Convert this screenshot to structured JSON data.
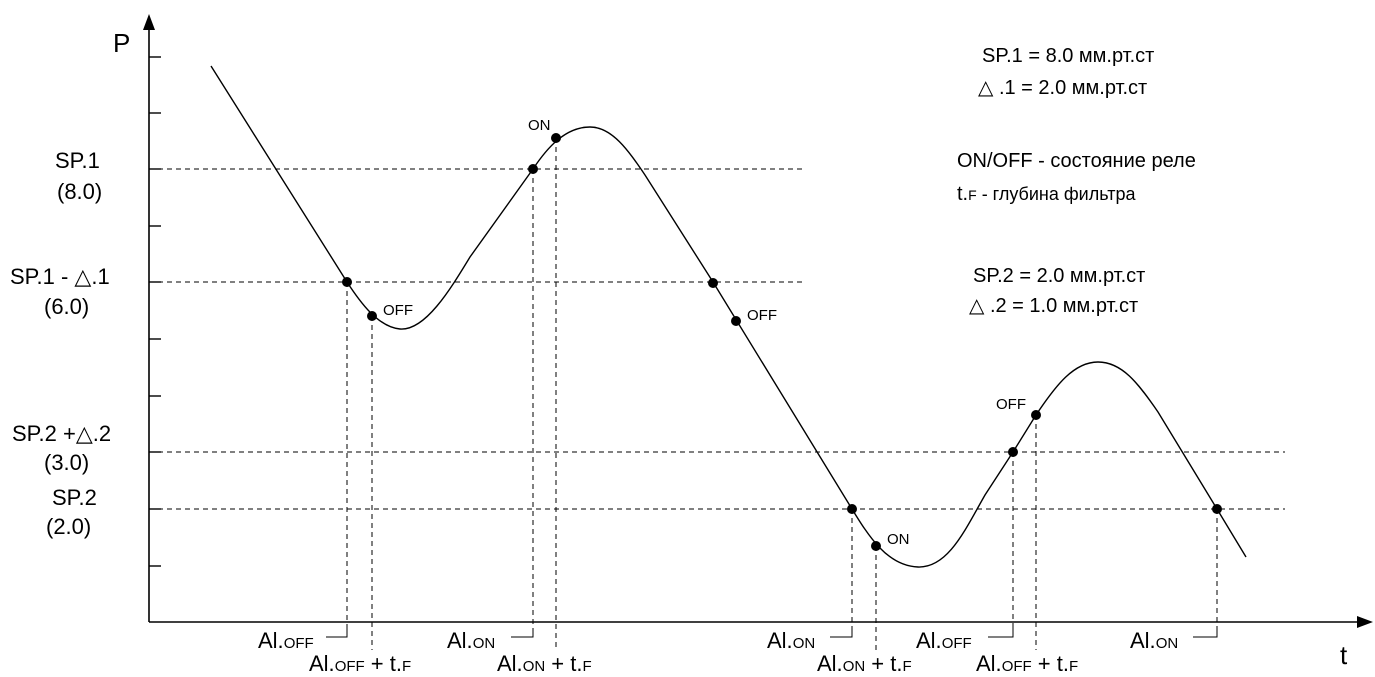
{
  "axes": {
    "y_label": "P",
    "x_label": "t"
  },
  "levels": [
    {
      "key": "sp1",
      "name": "SP.1",
      "value": "(8.0)"
    },
    {
      "key": "sp1_minus",
      "name": "SP.1 - △.1",
      "value": "(6.0)"
    },
    {
      "key": "sp2_plus",
      "name": "SP.2 +△.2",
      "value": "(3.0)"
    },
    {
      "key": "sp2",
      "name": "SP.2",
      "value": "(2.0)"
    }
  ],
  "legend": {
    "sp1": "SP.1 = 8.0  мм.рт.ст",
    "d1": "△ .1 = 2.0  мм.рт.ст",
    "onoff": "ON/OFF - состояние реле",
    "tf_main": "t.",
    "tf_small": "F",
    "tf_rest": " - глубина фильтра",
    "sp2": "SP.2 = 2.0  мм.рт.ст",
    "d2": "△ .2 = 1.0  мм.рт.ст"
  },
  "states": {
    "on": "ON",
    "off": "OFF"
  },
  "x_labels": {
    "al": "Al.",
    "off": "OFF",
    "on": "ON",
    "plus_t": " + t.",
    "f": "F"
  },
  "colors": {
    "ink": "#000000",
    "background": "#ffffff"
  }
}
